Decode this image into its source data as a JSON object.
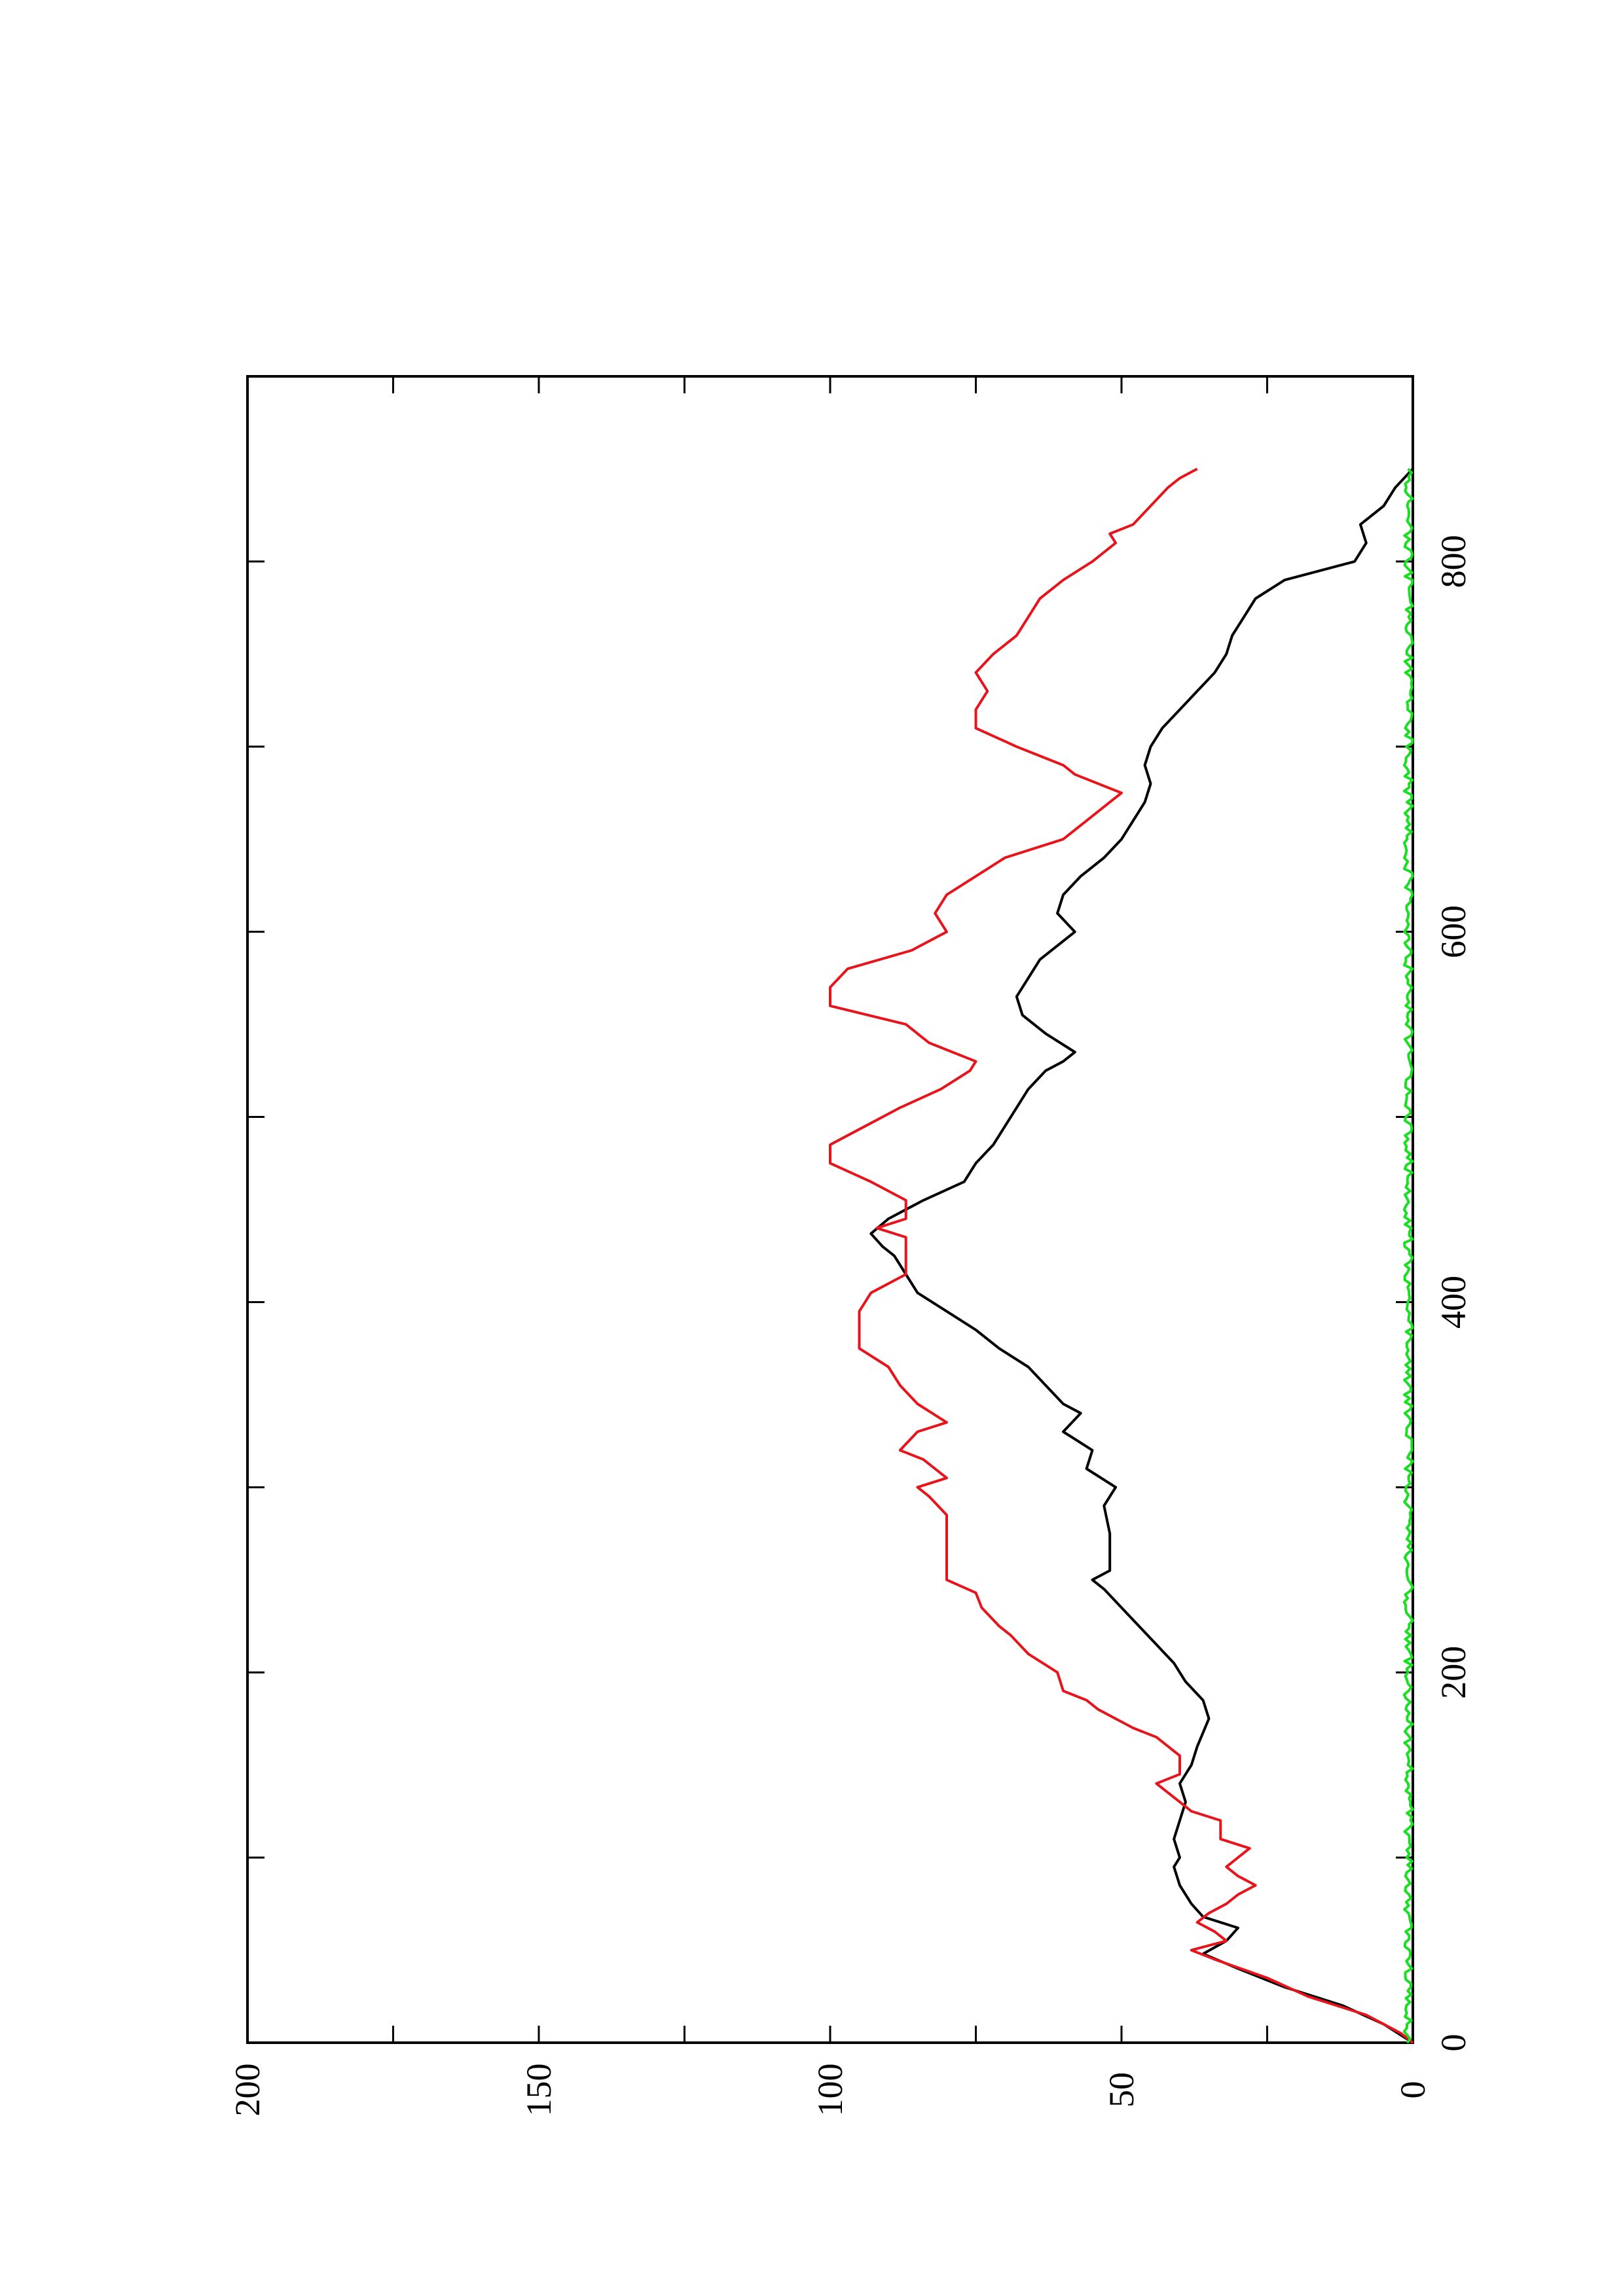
{
  "chart_data": {
    "type": "line",
    "orientation": "rotated-90-clockwise",
    "title": "",
    "xlabel": "",
    "ylabel": "",
    "xlim": [
      0,
      900
    ],
    "ylim": [
      0,
      200
    ],
    "x_ticks": [
      0,
      200,
      400,
      600,
      800
    ],
    "x_minor_ticks": [
      100,
      300,
      500,
      700
    ],
    "y_ticks": [
      0,
      50,
      100,
      150,
      200
    ],
    "y_minor_ticks": [
      25,
      75,
      125,
      175
    ],
    "grid": false,
    "legend": "none",
    "series": [
      {
        "color": "#000000",
        "points": [
          [
            0,
            0
          ],
          [
            10,
            5
          ],
          [
            20,
            12
          ],
          [
            30,
            22
          ],
          [
            40,
            30
          ],
          [
            48,
            36
          ],
          [
            55,
            32
          ],
          [
            62,
            30
          ],
          [
            68,
            36
          ],
          [
            75,
            38
          ],
          [
            85,
            40
          ],
          [
            95,
            41
          ],
          [
            100,
            40
          ],
          [
            110,
            41
          ],
          [
            120,
            40
          ],
          [
            130,
            39
          ],
          [
            140,
            40
          ],
          [
            145,
            39
          ],
          [
            150,
            38
          ],
          [
            160,
            37
          ],
          [
            175,
            35
          ],
          [
            185,
            36
          ],
          [
            195,
            39
          ],
          [
            205,
            41
          ],
          [
            215,
            44
          ],
          [
            225,
            47
          ],
          [
            235,
            50
          ],
          [
            245,
            53
          ],
          [
            250,
            55
          ],
          [
            255,
            52
          ],
          [
            265,
            52
          ],
          [
            275,
            52
          ],
          [
            290,
            53
          ],
          [
            300,
            51
          ],
          [
            310,
            56
          ],
          [
            320,
            55
          ],
          [
            330,
            60
          ],
          [
            340,
            57
          ],
          [
            345,
            60
          ],
          [
            355,
            63
          ],
          [
            365,
            66
          ],
          [
            375,
            71
          ],
          [
            385,
            75
          ],
          [
            395,
            80
          ],
          [
            405,
            85
          ],
          [
            415,
            87
          ],
          [
            425,
            89
          ],
          [
            430,
            91
          ],
          [
            437,
            93
          ],
          [
            445,
            90
          ],
          [
            455,
            84
          ],
          [
            465,
            77
          ],
          [
            475,
            75
          ],
          [
            485,
            72
          ],
          [
            495,
            70
          ],
          [
            505,
            68
          ],
          [
            515,
            66
          ],
          [
            525,
            63
          ],
          [
            530,
            60
          ],
          [
            535,
            58
          ],
          [
            545,
            63
          ],
          [
            555,
            67
          ],
          [
            565,
            68
          ],
          [
            575,
            66
          ],
          [
            585,
            64
          ],
          [
            595,
            60
          ],
          [
            600,
            58
          ],
          [
            610,
            61
          ],
          [
            620,
            60
          ],
          [
            630,
            57
          ],
          [
            640,
            53
          ],
          [
            650,
            50
          ],
          [
            660,
            48
          ],
          [
            670,
            46
          ],
          [
            680,
            45
          ],
          [
            690,
            46
          ],
          [
            700,
            45
          ],
          [
            710,
            43
          ],
          [
            720,
            40
          ],
          [
            730,
            37
          ],
          [
            740,
            34
          ],
          [
            750,
            32
          ],
          [
            760,
            31
          ],
          [
            770,
            29
          ],
          [
            780,
            27
          ],
          [
            790,
            22
          ],
          [
            800,
            10
          ],
          [
            810,
            8
          ],
          [
            820,
            9
          ],
          [
            830,
            5
          ],
          [
            840,
            3
          ],
          [
            850,
            0
          ]
        ]
      },
      {
        "color": "#e8141c",
        "points": [
          [
            0,
            0
          ],
          [
            5,
            2
          ],
          [
            10,
            5
          ],
          [
            15,
            8
          ],
          [
            25,
            18
          ],
          [
            35,
            25
          ],
          [
            45,
            34
          ],
          [
            50,
            38
          ],
          [
            55,
            32
          ],
          [
            60,
            34
          ],
          [
            65,
            37
          ],
          [
            70,
            35
          ],
          [
            75,
            32
          ],
          [
            80,
            30
          ],
          [
            85,
            27
          ],
          [
            90,
            30
          ],
          [
            95,
            32
          ],
          [
            100,
            30
          ],
          [
            105,
            28
          ],
          [
            110,
            33
          ],
          [
            120,
            33
          ],
          [
            125,
            38
          ],
          [
            130,
            40
          ],
          [
            140,
            44
          ],
          [
            145,
            40
          ],
          [
            155,
            40
          ],
          [
            165,
            44
          ],
          [
            170,
            48
          ],
          [
            180,
            54
          ],
          [
            185,
            56
          ],
          [
            190,
            60
          ],
          [
            200,
            61
          ],
          [
            210,
            66
          ],
          [
            220,
            69
          ],
          [
            225,
            71
          ],
          [
            235,
            74
          ],
          [
            243,
            75
          ],
          [
            250,
            80
          ],
          [
            260,
            80
          ],
          [
            270,
            80
          ],
          [
            285,
            80
          ],
          [
            295,
            83
          ],
          [
            300,
            85
          ],
          [
            305,
            80
          ],
          [
            315,
            84
          ],
          [
            320,
            88
          ],
          [
            330,
            85
          ],
          [
            335,
            80
          ],
          [
            345,
            85
          ],
          [
            355,
            88
          ],
          [
            365,
            90
          ],
          [
            375,
            95
          ],
          [
            385,
            95
          ],
          [
            395,
            95
          ],
          [
            405,
            93
          ],
          [
            415,
            87
          ],
          [
            425,
            87
          ],
          [
            435,
            87
          ],
          [
            440,
            92
          ],
          [
            445,
            87
          ],
          [
            455,
            87
          ],
          [
            465,
            93
          ],
          [
            475,
            100
          ],
          [
            485,
            100
          ],
          [
            495,
            94
          ],
          [
            505,
            88
          ],
          [
            515,
            81
          ],
          [
            525,
            76
          ],
          [
            530,
            75
          ],
          [
            540,
            83
          ],
          [
            550,
            87
          ],
          [
            560,
            100
          ],
          [
            570,
            100
          ],
          [
            580,
            97
          ],
          [
            590,
            86
          ],
          [
            600,
            80
          ],
          [
            610,
            82
          ],
          [
            620,
            80
          ],
          [
            630,
            75
          ],
          [
            640,
            70
          ],
          [
            650,
            60
          ],
          [
            660,
            56
          ],
          [
            670,
            52
          ],
          [
            675,
            50
          ],
          [
            685,
            58
          ],
          [
            690,
            60
          ],
          [
            700,
            68
          ],
          [
            710,
            75
          ],
          [
            720,
            75
          ],
          [
            730,
            73
          ],
          [
            740,
            75
          ],
          [
            750,
            72
          ],
          [
            760,
            68
          ],
          [
            770,
            66
          ],
          [
            780,
            64
          ],
          [
            790,
            60
          ],
          [
            800,
            55
          ],
          [
            810,
            51
          ],
          [
            815,
            52
          ],
          [
            820,
            48
          ],
          [
            830,
            45
          ],
          [
            840,
            42
          ],
          [
            845,
            40
          ],
          [
            850,
            37
          ]
        ]
      },
      {
        "color": "#18e020",
        "noise_amplitude": 1.5,
        "x_start": 0,
        "x_end": 850,
        "baseline": 0
      }
    ]
  }
}
